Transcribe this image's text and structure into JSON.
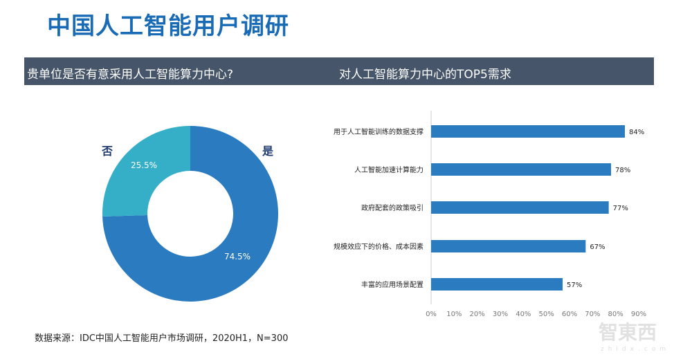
{
  "title": "中国人工智能用户调研",
  "band": {
    "left": "贵单位是否有意采用人工智能算力中心?",
    "right": "对人工智能算力中心的TOP5需求"
  },
  "source": "数据来源：IDC中国人工智能用户市场调研，2020H1，N=300",
  "watermark": {
    "logo": "智東西",
    "url": "zhidx.com"
  },
  "chart_data": [
    {
      "type": "pie",
      "donut": true,
      "categories": [
        "是",
        "否"
      ],
      "values": [
        74.5,
        25.5
      ],
      "labels": [
        "74.5%",
        "25.5%"
      ],
      "colors": [
        "#2a7bbf",
        "#35aec8"
      ]
    },
    {
      "type": "bar",
      "orientation": "horizontal",
      "categories": [
        "用于人工智能训练的数据支撑",
        "人工智能加速计算能力",
        "政府配套的政策吸引",
        "规模效应下的价格、成本因素",
        "丰富的应用场景配置"
      ],
      "values": [
        84,
        78,
        77,
        67,
        57
      ],
      "labels": [
        "84%",
        "78%",
        "77%",
        "67%",
        "57%"
      ],
      "xlim": [
        0,
        90
      ],
      "xticks": [
        "0%",
        "10%",
        "20%",
        "30%",
        "40%",
        "50%",
        "60%",
        "70%",
        "80%",
        "90%"
      ],
      "color": "#2a7bbf",
      "grid": false
    }
  ]
}
